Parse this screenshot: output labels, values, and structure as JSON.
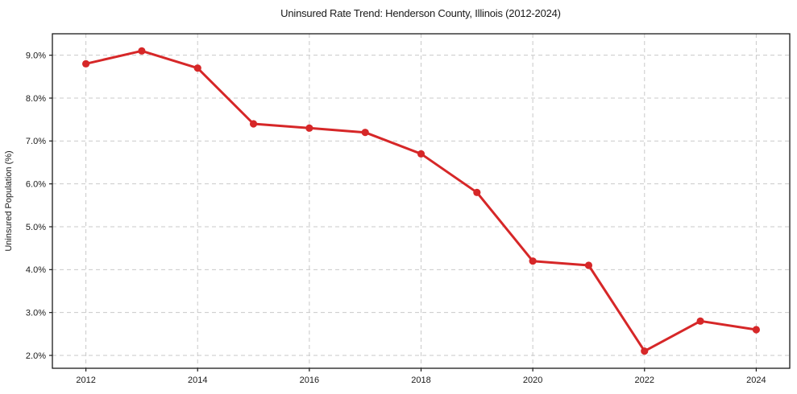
{
  "chart_data": {
    "type": "line",
    "title": "Uninsured Rate Trend: Henderson County, Illinois (2012-2024)",
    "xlabel": "",
    "ylabel": "Uninsured Population (%)",
    "x": [
      2012,
      2013,
      2014,
      2015,
      2016,
      2017,
      2018,
      2019,
      2020,
      2021,
      2022,
      2023,
      2024
    ],
    "series": [
      {
        "values": [
          8.8,
          9.1,
          8.7,
          7.4,
          7.3,
          7.2,
          6.7,
          5.8,
          4.2,
          4.1,
          2.1,
          2.8,
          2.6
        ],
        "color": "#d62728",
        "marker": "circle"
      }
    ],
    "xticks": {
      "values": [
        2012,
        2014,
        2016,
        2018,
        2020,
        2022,
        2024
      ],
      "labels": [
        "2012",
        "2014",
        "2016",
        "2018",
        "2020",
        "2022",
        "2024"
      ]
    },
    "yticks": {
      "values": [
        2,
        3,
        4,
        5,
        6,
        7,
        8,
        9
      ],
      "labels": [
        "2.0%",
        "3.0%",
        "4.0%",
        "5.0%",
        "6.0%",
        "7.0%",
        "8.0%",
        "9.0%"
      ]
    },
    "xlim": [
      2011.4,
      2024.6
    ],
    "ylim": [
      1.7,
      9.5
    ],
    "grid": {
      "show": true,
      "color": "#c9c9c9",
      "dash": "5,4",
      "width": 1
    },
    "styles": {
      "line_color": "#d62728",
      "line_width": 3,
      "marker_radius": 4.6,
      "axis_color": "#1a1a1a",
      "text_color": "#1a1a1a",
      "background": "#ffffff"
    },
    "legend": {
      "show": false
    }
  }
}
